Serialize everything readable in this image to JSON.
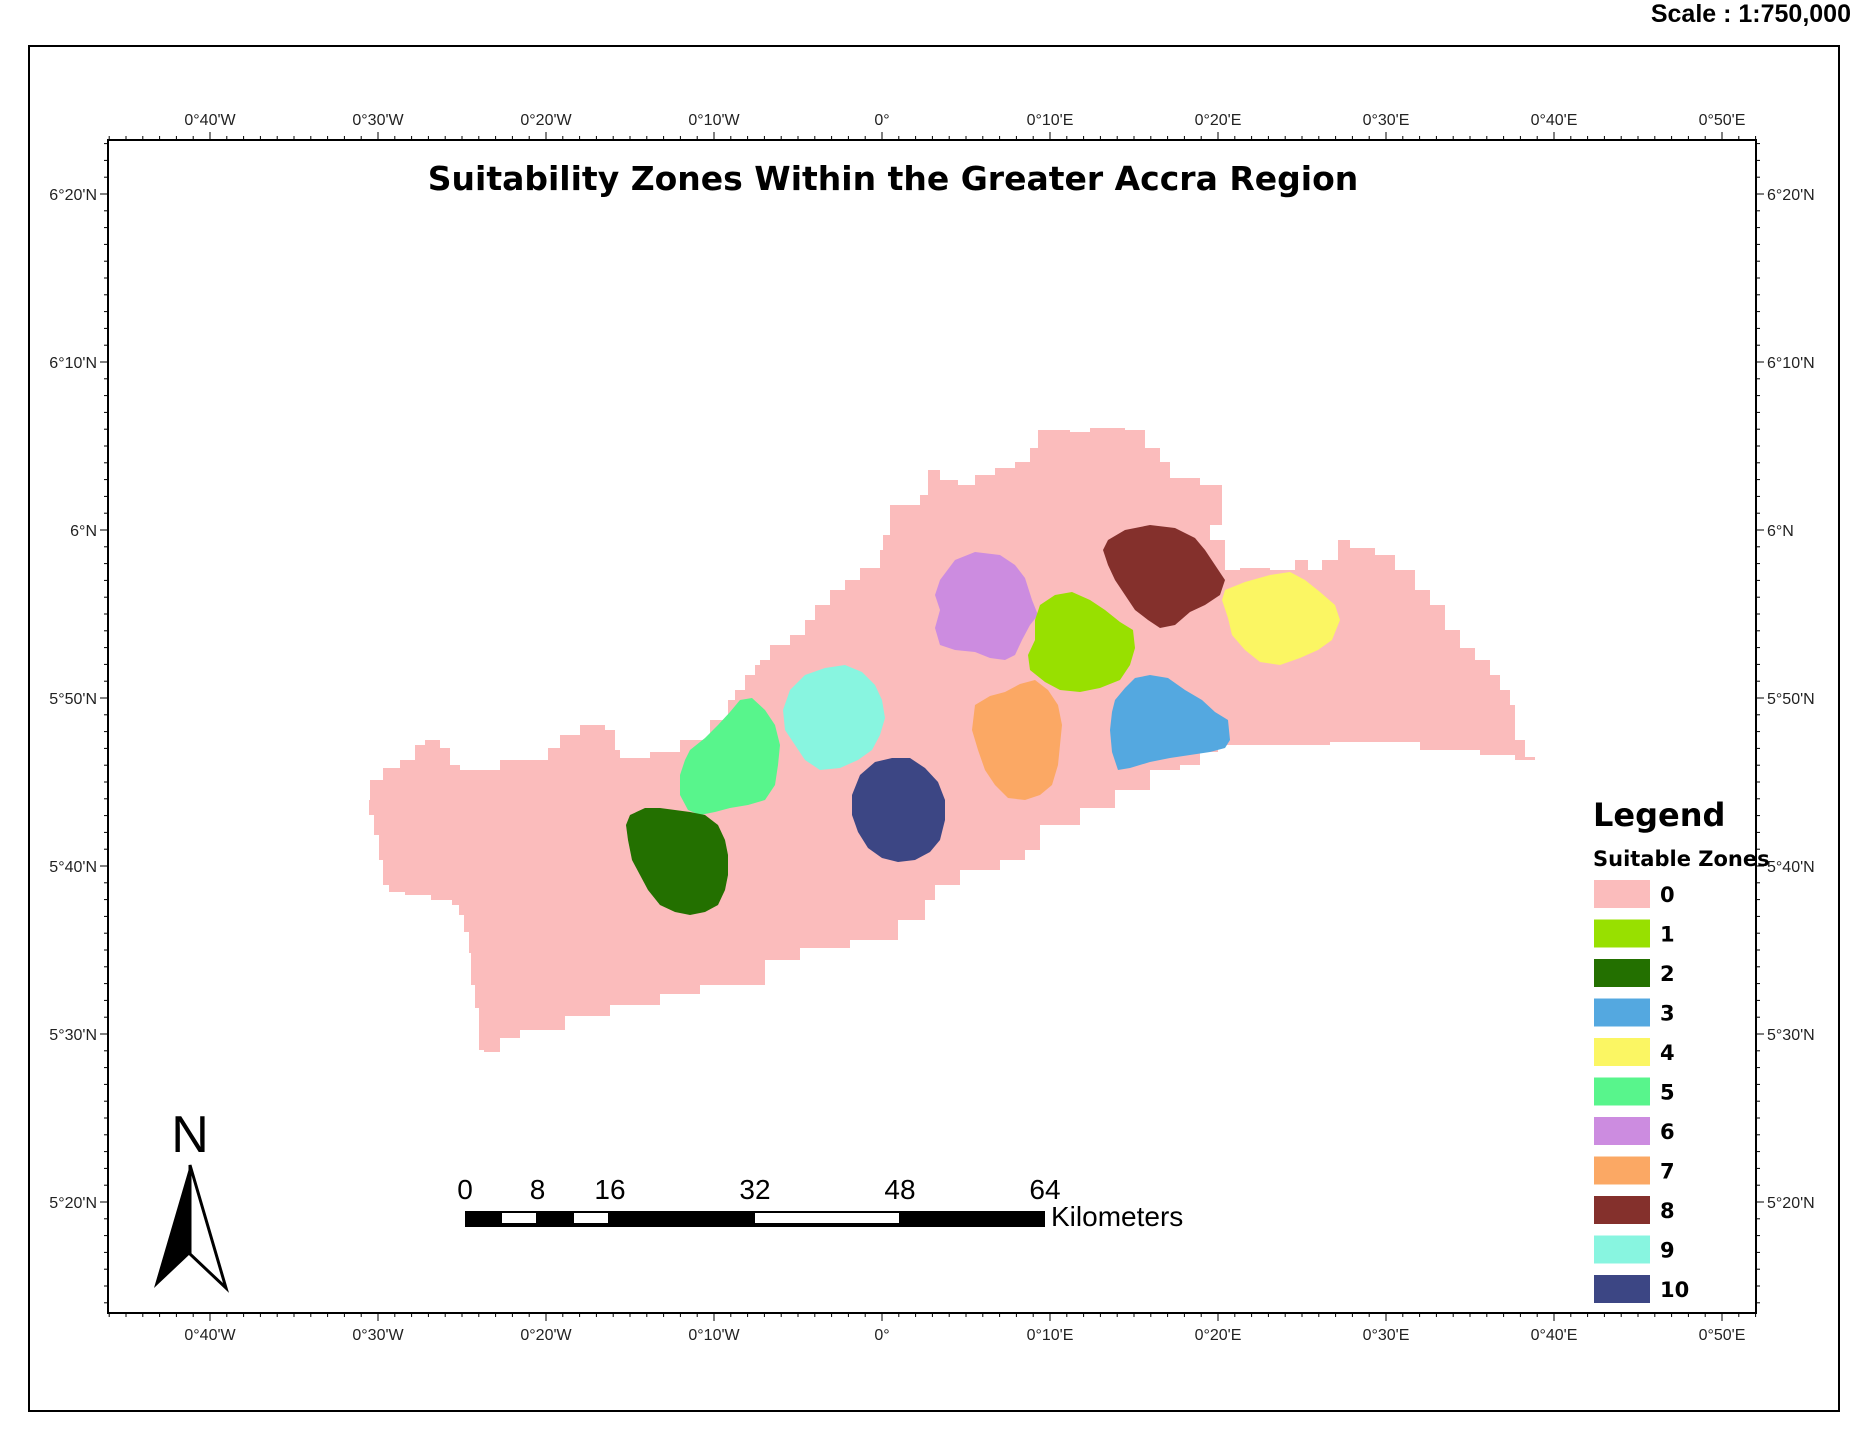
{
  "scale_text": "Scale : 1:750,000",
  "map_title": "Suitability Zones Within the Greater Accra Region",
  "longitude_labels": [
    "0°40'W",
    "0°30'W",
    "0°20'W",
    "0°10'W",
    "0°",
    "0°10'E",
    "0°20'E",
    "0°30'E",
    "0°40'E",
    "0°50'E"
  ],
  "latitude_labels": [
    "6°20'N",
    "6°10'N",
    "6°N",
    "5°50'N",
    "5°40'N",
    "5°30'N",
    "5°20'N"
  ],
  "legend": {
    "title": "Legend",
    "subtitle": "Suitable Zones",
    "items": [
      {
        "label": "0",
        "color": "#fbbcbc"
      },
      {
        "label": "1",
        "color": "#98e000"
      },
      {
        "label": "2",
        "color": "#237000"
      },
      {
        "label": "3",
        "color": "#54a8e0"
      },
      {
        "label": "4",
        "color": "#fbf663"
      },
      {
        "label": "5",
        "color": "#58f58c"
      },
      {
        "label": "6",
        "color": "#cc8ce0"
      },
      {
        "label": "7",
        "color": "#fba864"
      },
      {
        "label": "8",
        "color": "#84302c"
      },
      {
        "label": "9",
        "color": "#88f5e0"
      },
      {
        "label": "10",
        "color": "#3c4684"
      }
    ]
  },
  "scale_bar": {
    "labels": [
      "0",
      "8",
      "16",
      "32",
      "48",
      "64"
    ],
    "unit": "Kilometers"
  },
  "north_arrow": {
    "letter": "N",
    "icon": "north-arrow-icon"
  }
}
